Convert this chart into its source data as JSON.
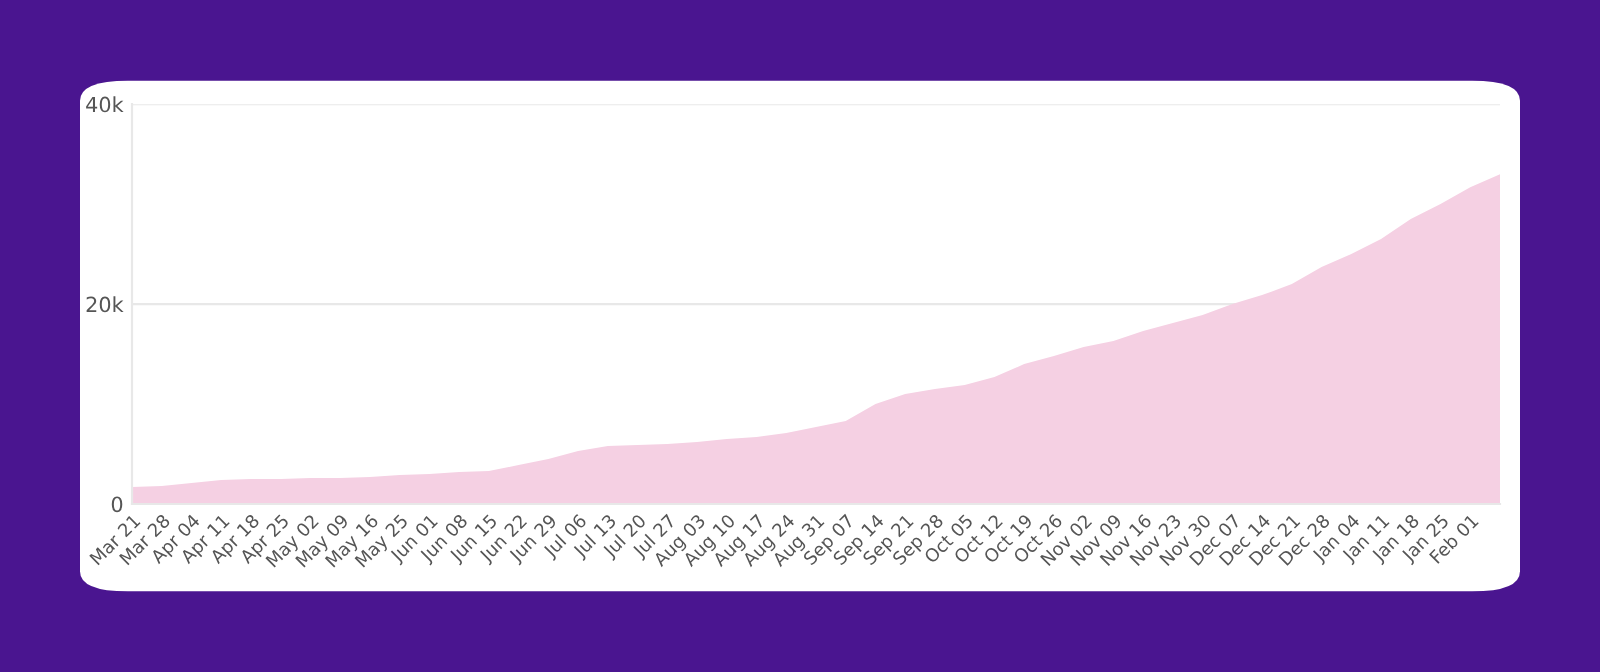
{
  "chart_data": {
    "type": "area",
    "categories": [
      "Mar 21",
      "Mar 28",
      "Apr 04",
      "Apr 11",
      "Apr 18",
      "Apr 25",
      "May 02",
      "May 09",
      "May 16",
      "May 25",
      "Jun 01",
      "Jun 08",
      "Jun 15",
      "Jun 22",
      "Jun 29",
      "Jul 06",
      "Jul 13",
      "Jul 20",
      "Jul 27",
      "Aug 03",
      "Aug 10",
      "Aug 17",
      "Aug 24",
      "Aug 31",
      "Sep 07",
      "Sep 14",
      "Sep 21",
      "Sep 28",
      "Oct 05",
      "Oct 12",
      "Oct 19",
      "Oct 26",
      "Nov 02",
      "Nov 09",
      "Nov 16",
      "Nov 23",
      "Nov 30",
      "Dec 07",
      "Dec 14",
      "Dec 21",
      "Dec 28",
      "Jan 04",
      "Jan 11",
      "Jan 18",
      "Jan 25",
      "Feb 01",
      null
    ],
    "series": [
      {
        "color": "#f5d0e3",
        "values": [
          1700,
          1800,
          2100,
          2400,
          2500,
          2500,
          2600,
          2600,
          2700,
          2900,
          3000,
          3200,
          3300,
          3900,
          4500,
          5300,
          5800,
          5900,
          6000,
          6200,
          6500,
          6700,
          7100,
          7700,
          8300,
          10000,
          11000,
          11500,
          11900,
          12700,
          14000,
          14800,
          15700,
          16300,
          17300,
          18100,
          18900,
          20000,
          20900,
          22000,
          23700,
          25000,
          26500,
          28500,
          30000,
          31700,
          33000
        ]
      }
    ],
    "ylim": [
      0,
      40000
    ],
    "yticks": [
      {
        "value": 0,
        "label": "0"
      },
      {
        "value": 20000,
        "label": "20k"
      },
      {
        "value": 40000,
        "label": "40k"
      }
    ],
    "grid": "y",
    "legend": false
  }
}
